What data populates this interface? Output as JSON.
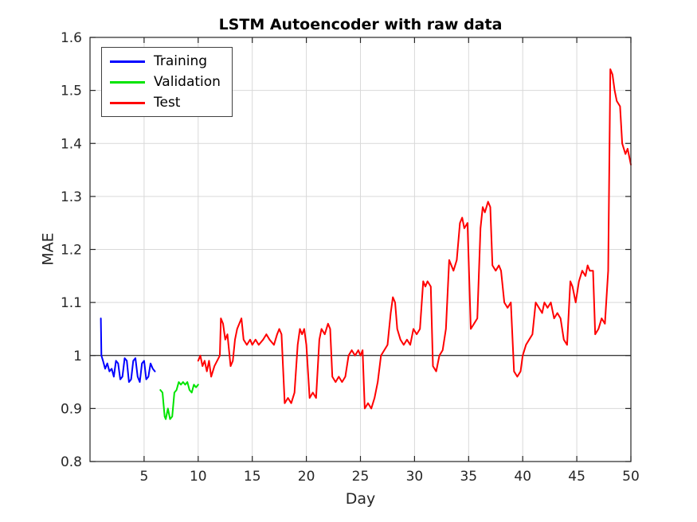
{
  "chart_data": {
    "type": "line",
    "title": "LSTM Autoencoder with raw data",
    "xlabel": "Day",
    "ylabel": "MAE",
    "xlim": [
      0,
      50
    ],
    "ylim": [
      0.8,
      1.6
    ],
    "xticks": [
      5,
      10,
      15,
      20,
      25,
      30,
      35,
      40,
      45,
      50
    ],
    "xtick_labels": [
      "5",
      "10",
      "15",
      "20",
      "25",
      "30",
      "35",
      "40",
      "45",
      "50"
    ],
    "yticks": [
      0.8,
      0.9,
      1,
      1.1,
      1.2,
      1.3,
      1.4,
      1.5,
      1.6
    ],
    "ytick_labels": [
      "0.8",
      "0.9",
      "1",
      "1.1",
      "1.2",
      "1.3",
      "1.4",
      "1.5",
      "1.6"
    ],
    "grid": true,
    "legend_position": "top-left",
    "reference_line_y": 1,
    "reference_line_color": "#000000",
    "grid_color": "#d9d9d9",
    "axis_color": "#262626",
    "series": [
      {
        "name": "Training",
        "color": "#0000ff",
        "points": [
          [
            1.0,
            1.07
          ],
          [
            1.05,
            1.0
          ],
          [
            1.2,
            0.99
          ],
          [
            1.4,
            0.975
          ],
          [
            1.6,
            0.985
          ],
          [
            1.8,
            0.97
          ],
          [
            2.0,
            0.975
          ],
          [
            2.2,
            0.96
          ],
          [
            2.4,
            0.99
          ],
          [
            2.6,
            0.985
          ],
          [
            2.8,
            0.955
          ],
          [
            3.0,
            0.96
          ],
          [
            3.2,
            0.995
          ],
          [
            3.4,
            0.99
          ],
          [
            3.6,
            0.95
          ],
          [
            3.8,
            0.955
          ],
          [
            4.0,
            0.99
          ],
          [
            4.2,
            0.995
          ],
          [
            4.4,
            0.96
          ],
          [
            4.6,
            0.95
          ],
          [
            4.8,
            0.985
          ],
          [
            5.0,
            0.99
          ],
          [
            5.2,
            0.955
          ],
          [
            5.4,
            0.96
          ],
          [
            5.6,
            0.985
          ],
          [
            5.8,
            0.975
          ],
          [
            6.0,
            0.97
          ]
        ]
      },
      {
        "name": "Validation",
        "color": "#00e400",
        "points": [
          [
            6.5,
            0.935
          ],
          [
            6.7,
            0.93
          ],
          [
            6.9,
            0.885
          ],
          [
            7.0,
            0.88
          ],
          [
            7.2,
            0.9
          ],
          [
            7.4,
            0.88
          ],
          [
            7.6,
            0.885
          ],
          [
            7.8,
            0.93
          ],
          [
            8.0,
            0.935
          ],
          [
            8.2,
            0.95
          ],
          [
            8.4,
            0.945
          ],
          [
            8.6,
            0.95
          ],
          [
            8.8,
            0.945
          ],
          [
            9.0,
            0.95
          ],
          [
            9.2,
            0.935
          ],
          [
            9.4,
            0.93
          ],
          [
            9.6,
            0.945
          ],
          [
            9.8,
            0.94
          ],
          [
            10.0,
            0.945
          ]
        ]
      },
      {
        "name": "Test",
        "color": "#ff0000",
        "points": [
          [
            10.0,
            0.99
          ],
          [
            10.2,
            1.0
          ],
          [
            10.4,
            0.98
          ],
          [
            10.6,
            0.99
          ],
          [
            10.8,
            0.97
          ],
          [
            11.0,
            0.99
          ],
          [
            11.2,
            0.96
          ],
          [
            11.5,
            0.98
          ],
          [
            12.0,
            1.0
          ],
          [
            12.1,
            1.07
          ],
          [
            12.3,
            1.06
          ],
          [
            12.5,
            1.03
          ],
          [
            12.7,
            1.04
          ],
          [
            13.0,
            0.98
          ],
          [
            13.2,
            0.99
          ],
          [
            13.4,
            1.03
          ],
          [
            13.6,
            1.05
          ],
          [
            13.8,
            1.06
          ],
          [
            14.0,
            1.07
          ],
          [
            14.2,
            1.03
          ],
          [
            14.5,
            1.02
          ],
          [
            14.8,
            1.03
          ],
          [
            15.0,
            1.02
          ],
          [
            15.3,
            1.03
          ],
          [
            15.6,
            1.02
          ],
          [
            16.0,
            1.03
          ],
          [
            16.3,
            1.04
          ],
          [
            16.6,
            1.03
          ],
          [
            17.0,
            1.02
          ],
          [
            17.3,
            1.04
          ],
          [
            17.5,
            1.05
          ],
          [
            17.7,
            1.04
          ],
          [
            18.0,
            0.91
          ],
          [
            18.3,
            0.92
          ],
          [
            18.6,
            0.91
          ],
          [
            18.9,
            0.93
          ],
          [
            19.2,
            1.02
          ],
          [
            19.4,
            1.05
          ],
          [
            19.6,
            1.04
          ],
          [
            19.8,
            1.05
          ],
          [
            20.0,
            1.02
          ],
          [
            20.3,
            0.92
          ],
          [
            20.6,
            0.93
          ],
          [
            20.9,
            0.92
          ],
          [
            21.2,
            1.03
          ],
          [
            21.4,
            1.05
          ],
          [
            21.7,
            1.04
          ],
          [
            22.0,
            1.06
          ],
          [
            22.2,
            1.05
          ],
          [
            22.4,
            0.96
          ],
          [
            22.7,
            0.95
          ],
          [
            23.0,
            0.96
          ],
          [
            23.3,
            0.95
          ],
          [
            23.6,
            0.96
          ],
          [
            23.9,
            1.0
          ],
          [
            24.2,
            1.01
          ],
          [
            24.5,
            1.0
          ],
          [
            24.8,
            1.01
          ],
          [
            25.0,
            1.0
          ],
          [
            25.2,
            1.01
          ],
          [
            25.4,
            0.9
          ],
          [
            25.7,
            0.91
          ],
          [
            26.0,
            0.9
          ],
          [
            26.3,
            0.92
          ],
          [
            26.6,
            0.95
          ],
          [
            26.9,
            1.0
          ],
          [
            27.2,
            1.01
          ],
          [
            27.5,
            1.02
          ],
          [
            27.8,
            1.08
          ],
          [
            28.0,
            1.11
          ],
          [
            28.2,
            1.1
          ],
          [
            28.4,
            1.05
          ],
          [
            28.7,
            1.03
          ],
          [
            29.0,
            1.02
          ],
          [
            29.3,
            1.03
          ],
          [
            29.6,
            1.02
          ],
          [
            29.9,
            1.05
          ],
          [
            30.2,
            1.04
          ],
          [
            30.5,
            1.05
          ],
          [
            30.8,
            1.14
          ],
          [
            31.0,
            1.13
          ],
          [
            31.2,
            1.14
          ],
          [
            31.5,
            1.13
          ],
          [
            31.7,
            0.98
          ],
          [
            32.0,
            0.97
          ],
          [
            32.3,
            1.0
          ],
          [
            32.6,
            1.01
          ],
          [
            32.9,
            1.05
          ],
          [
            33.2,
            1.18
          ],
          [
            33.4,
            1.17
          ],
          [
            33.6,
            1.16
          ],
          [
            33.9,
            1.18
          ],
          [
            34.2,
            1.25
          ],
          [
            34.4,
            1.26
          ],
          [
            34.6,
            1.24
          ],
          [
            34.9,
            1.25
          ],
          [
            35.2,
            1.05
          ],
          [
            35.5,
            1.06
          ],
          [
            35.8,
            1.07
          ],
          [
            36.1,
            1.24
          ],
          [
            36.3,
            1.28
          ],
          [
            36.5,
            1.27
          ],
          [
            36.8,
            1.29
          ],
          [
            37.0,
            1.28
          ],
          [
            37.2,
            1.17
          ],
          [
            37.5,
            1.16
          ],
          [
            37.8,
            1.17
          ],
          [
            38.0,
            1.16
          ],
          [
            38.3,
            1.1
          ],
          [
            38.6,
            1.09
          ],
          [
            38.9,
            1.1
          ],
          [
            39.2,
            0.97
          ],
          [
            39.5,
            0.96
          ],
          [
            39.8,
            0.97
          ],
          [
            40.0,
            1.0
          ],
          [
            40.3,
            1.02
          ],
          [
            40.6,
            1.03
          ],
          [
            40.9,
            1.04
          ],
          [
            41.2,
            1.1
          ],
          [
            41.5,
            1.09
          ],
          [
            41.8,
            1.08
          ],
          [
            42.0,
            1.1
          ],
          [
            42.3,
            1.09
          ],
          [
            42.6,
            1.1
          ],
          [
            42.9,
            1.07
          ],
          [
            43.2,
            1.08
          ],
          [
            43.5,
            1.07
          ],
          [
            43.8,
            1.03
          ],
          [
            44.1,
            1.02
          ],
          [
            44.4,
            1.14
          ],
          [
            44.6,
            1.13
          ],
          [
            44.9,
            1.1
          ],
          [
            45.2,
            1.14
          ],
          [
            45.5,
            1.16
          ],
          [
            45.8,
            1.15
          ],
          [
            46.0,
            1.17
          ],
          [
            46.2,
            1.16
          ],
          [
            46.5,
            1.16
          ],
          [
            46.7,
            1.04
          ],
          [
            47.0,
            1.05
          ],
          [
            47.3,
            1.07
          ],
          [
            47.6,
            1.06
          ],
          [
            47.9,
            1.16
          ],
          [
            48.1,
            1.54
          ],
          [
            48.3,
            1.53
          ],
          [
            48.5,
            1.5
          ],
          [
            48.7,
            1.48
          ],
          [
            49.0,
            1.47
          ],
          [
            49.2,
            1.4
          ],
          [
            49.5,
            1.38
          ],
          [
            49.7,
            1.39
          ],
          [
            50.0,
            1.36
          ]
        ]
      }
    ]
  }
}
